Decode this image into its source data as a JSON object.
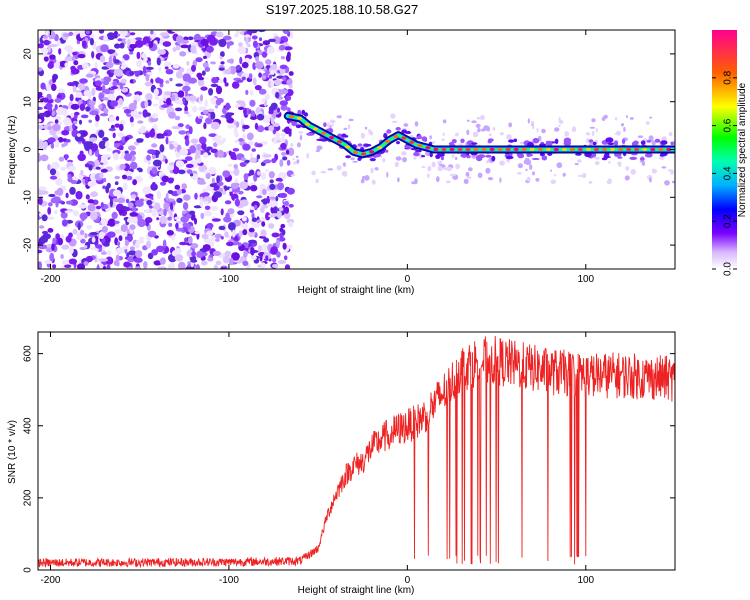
{
  "title": "S197.2025.188.10.58.G27",
  "chart_data": [
    {
      "type": "heatmap",
      "xlabel": "Height of straight line (km)",
      "ylabel": "Frequency (Hz)",
      "xlim": [
        -207,
        150
      ],
      "ylim": [
        -25,
        25
      ],
      "xticks": [
        -200,
        -100,
        0,
        100
      ],
      "yticks": [
        -20,
        -10,
        0,
        10,
        20
      ],
      "colorbar": {
        "label": "Normalized spectral amplitude",
        "range": [
          0,
          1
        ],
        "ticks": [
          0.0,
          0.2,
          0.4,
          0.6,
          0.8
        ]
      },
      "noise_region_x": [
        -207,
        -65
      ],
      "ridge": {
        "x": [
          -67,
          -60,
          -55,
          -50,
          -45,
          -40,
          -35,
          -30,
          -25,
          -20,
          -15,
          -10,
          -5,
          0,
          5,
          10,
          15,
          20,
          30,
          50,
          70,
          100,
          150
        ],
        "y": [
          7,
          6.5,
          5,
          4,
          3,
          2,
          1,
          -0.5,
          -1,
          -0.5,
          0.5,
          2,
          3,
          2,
          1,
          0.5,
          0,
          0,
          0,
          0,
          0,
          0,
          0
        ]
      }
    },
    {
      "type": "line",
      "xlabel": "Height of straight line (km)",
      "ylabel": "SNR (10 * v/v)",
      "xlim": [
        -207,
        150
      ],
      "ylim": [
        0,
        660
      ],
      "xticks": [
        -200,
        -100,
        0,
        100
      ],
      "yticks": [
        0,
        200,
        400,
        600
      ],
      "color": "#ee2222",
      "envelope": {
        "x": [
          -207,
          -100,
          -60,
          -50,
          -45,
          -40,
          -35,
          -30,
          -25,
          -20,
          -15,
          -10,
          -5,
          0,
          5,
          10,
          15,
          20,
          25,
          30,
          40,
          50,
          60,
          80,
          100,
          120,
          150
        ],
        "y": [
          20,
          22,
          25,
          60,
          150,
          210,
          260,
          290,
          300,
          340,
          360,
          380,
          390,
          400,
          410,
          430,
          460,
          490,
          520,
          560,
          580,
          580,
          570,
          550,
          540,
          540,
          530
        ]
      },
      "dropouts_x_range": [
        -10,
        105
      ]
    }
  ]
}
